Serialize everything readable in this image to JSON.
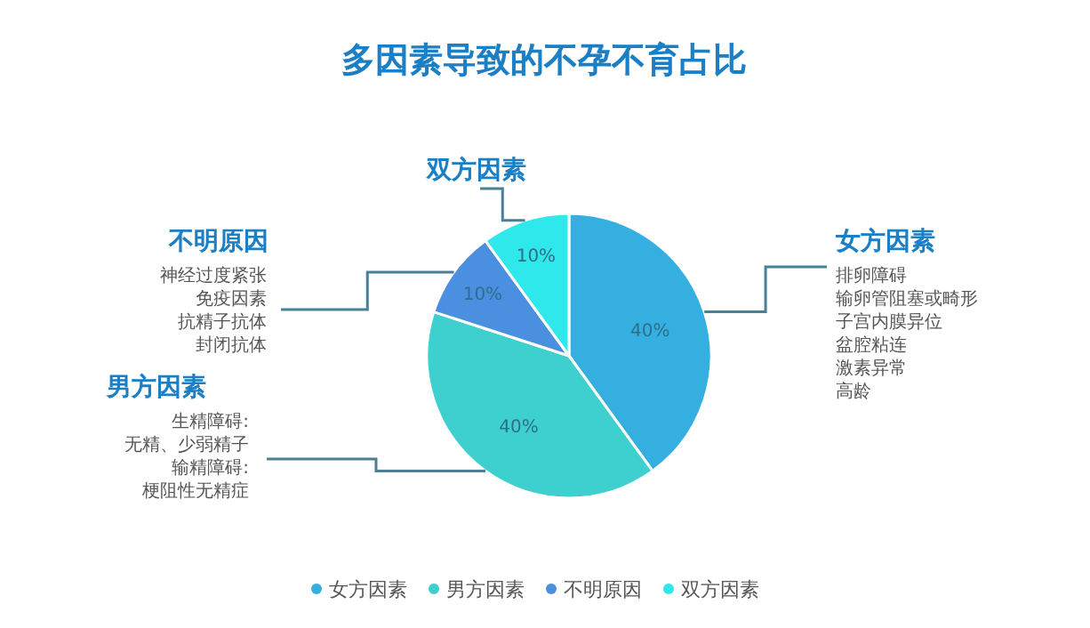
{
  "chart_data": {
    "type": "pie",
    "title": "多因素导致的不孕不育占比",
    "categories": [
      "女方因素",
      "男方因素",
      "不明原因",
      "双方因素"
    ],
    "values": [
      40,
      40,
      10,
      10
    ],
    "value_labels": [
      "40%",
      "40%",
      "10%",
      "10%"
    ],
    "colors": [
      "#35aee0",
      "#3ecfcf",
      "#4a8fe0",
      "#2ee8ec"
    ],
    "annotations": [
      "排卵障碍",
      "输卵管阻塞或畸形",
      "子宫内膜异位",
      "盆腔粘连",
      "激素异常",
      "高龄",
      "生精障碍:",
      "无精、少弱精子",
      "输精障碍:",
      "梗阻性无精症",
      "神经过度紧张",
      "免疫因素",
      "抗精子抗体",
      "封闭抗体"
    ],
    "legend": "bottom"
  }
}
